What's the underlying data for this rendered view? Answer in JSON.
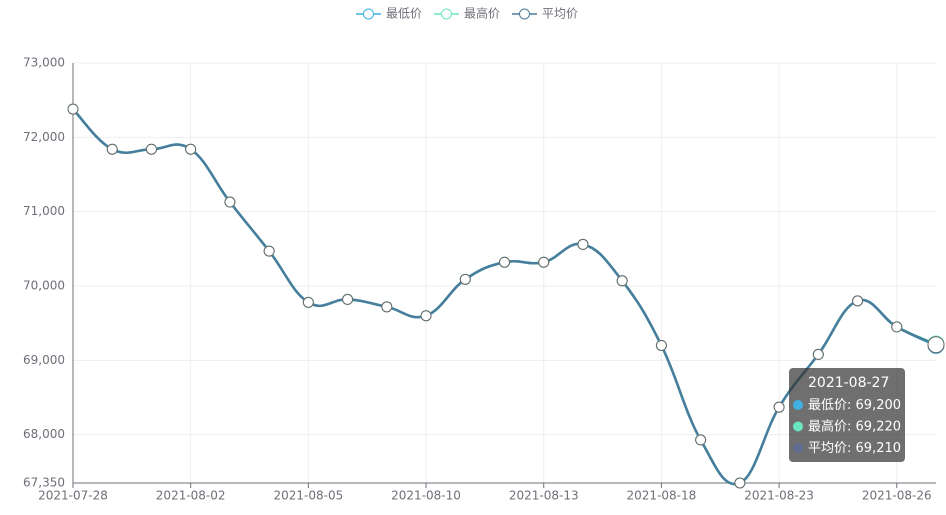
{
  "chart_data": {
    "type": "line",
    "categories": [
      "2021-07-28",
      null,
      null,
      "2021-08-02",
      null,
      null,
      "2021-08-05",
      null,
      null,
      "2021-08-10",
      null,
      null,
      "2021-08-13",
      null,
      null,
      "2021-08-18",
      null,
      null,
      "2021-08-23",
      null,
      null,
      "2021-08-26",
      null
    ],
    "series": [
      {
        "name": "最低价",
        "color": "#3fb1e3",
        "values": [
          72380,
          71840,
          71840,
          71840,
          71130,
          70470,
          69780,
          69820,
          69720,
          69600,
          70090,
          70320,
          70320,
          70560,
          70070,
          69200,
          67930,
          67350,
          68370,
          69080,
          69800,
          69450,
          69200
        ]
      },
      {
        "name": "最高价",
        "color": "#6be6c1",
        "values": [
          72380,
          71840,
          71840,
          71840,
          71130,
          70470,
          69780,
          69820,
          69720,
          69600,
          70090,
          70320,
          70320,
          70560,
          70070,
          69200,
          67930,
          67350,
          68370,
          69080,
          69800,
          69450,
          69220
        ]
      },
      {
        "name": "平均价",
        "color": "#4a7c9c",
        "values": [
          72380,
          71840,
          71840,
          71840,
          71130,
          70470,
          69780,
          69820,
          69720,
          69600,
          70090,
          70320,
          70320,
          70560,
          70070,
          69200,
          67930,
          67350,
          68370,
          69080,
          69800,
          69450,
          69210
        ]
      }
    ],
    "ylim": [
      67350,
      73000
    ],
    "yticks": [
      {
        "value": 67350,
        "label": "67,350"
      },
      {
        "value": 68000,
        "label": "68,000"
      },
      {
        "value": 69000,
        "label": "69,000"
      },
      {
        "value": 70000,
        "label": "70,000"
      },
      {
        "value": 71000,
        "label": "71,000"
      },
      {
        "value": 72000,
        "label": "72,000"
      },
      {
        "value": 73000,
        "label": "73,000"
      }
    ],
    "grid": true,
    "smooth": true,
    "legend": "top",
    "tooltip": {
      "index": 22,
      "title": "2021-08-27",
      "labels": [
        "69,200",
        "69,220",
        "69,210"
      ]
    }
  }
}
